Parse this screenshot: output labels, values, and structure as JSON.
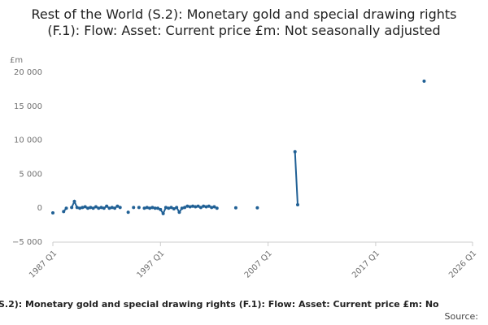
{
  "chart_data": {
    "type": "line",
    "title": "Rest of the World (S.2): Monetary gold and special drawing rights (F.1): Flow: Asset: Current price £m: Not seasonally adjusted",
    "y_unit": "£m",
    "footer_title": "S.2): Monetary gold and special drawing rights (F.1): Flow: Asset: Current price £m: No",
    "source": "Source:",
    "color": "#206095",
    "ylim": [
      -5000,
      20000
    ],
    "yticks": [
      {
        "value": -5000,
        "label": "−5 000"
      },
      0,
      {
        "value": 5000,
        "label": "5 000"
      },
      {
        "value": 10000,
        "label": "10 000"
      },
      {
        "value": 15000,
        "label": "15 000"
      },
      {
        "value": 20000,
        "label": "20 000"
      }
    ],
    "categories": [
      "1987 Q1",
      null,
      null,
      null,
      null,
      null,
      null,
      null,
      null,
      null,
      null,
      null,
      null,
      null,
      null,
      null,
      null,
      null,
      null,
      null,
      null,
      null,
      null,
      null,
      null,
      null,
      null,
      null,
      null,
      null,
      null,
      null,
      null,
      null,
      null,
      null,
      null,
      null,
      null,
      null,
      "1997 Q1",
      null,
      null,
      null,
      null,
      null,
      null,
      null,
      null,
      null,
      null,
      null,
      null,
      null,
      null,
      null,
      null,
      null,
      null,
      null,
      null,
      null,
      null,
      null,
      null,
      null,
      null,
      null,
      null,
      null,
      null,
      null,
      null,
      null,
      null,
      null,
      null,
      null,
      null,
      null,
      "2007 Q1",
      null,
      null,
      null,
      null,
      null,
      null,
      null,
      null,
      null,
      null,
      null,
      null,
      null,
      null,
      null,
      null,
      null,
      null,
      null,
      null,
      null,
      null,
      null,
      null,
      null,
      null,
      null,
      null,
      null,
      null,
      null,
      null,
      null,
      null,
      null,
      null,
      null,
      null,
      null,
      "2017 Q1",
      null,
      null,
      null,
      null,
      null,
      null,
      null,
      null,
      null,
      null,
      null,
      null,
      null,
      null,
      null,
      null,
      null,
      null,
      null,
      null,
      null,
      null,
      null,
      null,
      null,
      null,
      null,
      null,
      null,
      null,
      null,
      null,
      null,
      null,
      null,
      "2026 Q1"
    ],
    "values": [
      -700,
      null,
      null,
      null,
      -500,
      0,
      null,
      100,
      1000,
      100,
      0,
      100,
      200,
      0,
      100,
      0,
      200,
      0,
      100,
      0,
      300,
      0,
      100,
      0,
      300,
      100,
      null,
      null,
      -600,
      null,
      100,
      null,
      100,
      null,
      0,
      100,
      0,
      100,
      0,
      0,
      -200,
      -800,
      100,
      0,
      100,
      -100,
      100,
      -600,
      0,
      100,
      300,
      200,
      300,
      200,
      300,
      100,
      300,
      200,
      300,
      100,
      200,
      0,
      null,
      null,
      null,
      null,
      null,
      null,
      50,
      null,
      null,
      null,
      null,
      null,
      null,
      null,
      50,
      null,
      null,
      null,
      null,
      null,
      null,
      null,
      null,
      null,
      null,
      null,
      null,
      null,
      8300,
      500,
      null,
      null,
      null,
      null,
      null,
      null,
      null,
      null,
      null,
      null,
      null,
      null,
      null,
      null,
      null,
      null,
      null,
      null,
      null,
      null,
      null,
      null,
      null,
      null,
      null,
      null,
      null,
      null,
      null,
      null,
      null,
      null,
      null,
      null,
      null,
      null,
      null,
      null,
      null,
      null,
      null,
      null,
      null,
      null,
      null,
      null,
      18700,
      null,
      null,
      null,
      null,
      null,
      null,
      null,
      null,
      null,
      null,
      null,
      null,
      null,
      null,
      null,
      null,
      null,
      null
    ]
  }
}
